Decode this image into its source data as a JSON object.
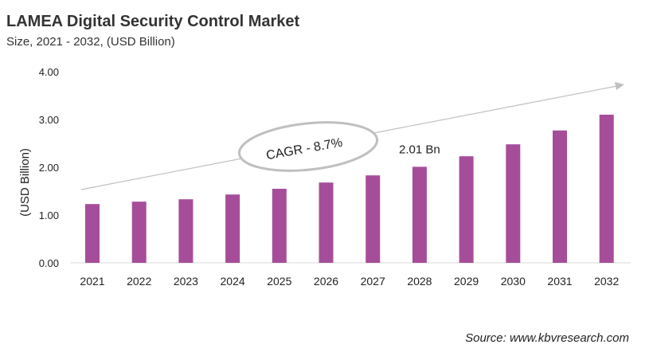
{
  "title": "LAMEA Digital Security Control Market",
  "subtitle": "Size, 2021 - 2032, (USD Billion)",
  "source": "Source: www.kbvresearch.com",
  "chart_data": {
    "type": "bar",
    "categories": [
      "2021",
      "2022",
      "2023",
      "2024",
      "2025",
      "2026",
      "2027",
      "2028",
      "2029",
      "2030",
      "2031",
      "2032"
    ],
    "values": [
      1.23,
      1.28,
      1.33,
      1.43,
      1.55,
      1.68,
      1.83,
      2.01,
      2.23,
      2.48,
      2.77,
      3.1
    ],
    "ylabel": "(USD Billion)",
    "ylim": [
      0,
      4
    ],
    "yticks": [
      "0.00",
      "1.00",
      "2.00",
      "3.00",
      "4.00"
    ],
    "data_label": {
      "category": "2028",
      "text": "2.01 Bn"
    },
    "annotation": "CAGR - 8.7%",
    "bar_color": "#a64d9a",
    "grid": false
  }
}
